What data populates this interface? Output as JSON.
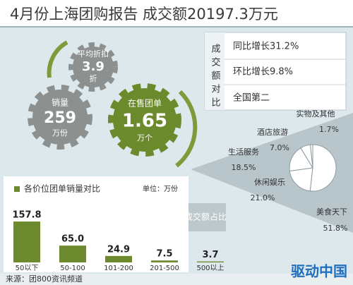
{
  "title": "4月份上海团购报告 成交额20197.3万元",
  "gears": [
    {
      "label": "平均折扣",
      "value": "3.9",
      "unit": "折"
    },
    {
      "label": "销量",
      "value": "259",
      "unit": "万份"
    },
    {
      "label": "在售团单",
      "value": "1.65",
      "unit": "万个"
    }
  ],
  "comparison": {
    "label": "成交额对比",
    "items": [
      "同比增长31.2%",
      "环比增长9.8%",
      "全国第二"
    ]
  },
  "chart_data": [
    {
      "type": "bar",
      "title": "各价位团单销量对比",
      "unit": "单位：万份",
      "categories": [
        "50以下",
        "50-100",
        "101-200",
        "201-500",
        "500以上"
      ],
      "values": [
        157.8,
        65.0,
        24.9,
        7.5,
        3.7
      ],
      "value_labels": [
        "157.8",
        "65.0",
        "24.9",
        "7.5",
        "3.7"
      ],
      "color": "#6e8a2f"
    },
    {
      "type": "pie",
      "title": "各类团购成交额占比",
      "categories": [
        "实物及其他",
        "酒店旅游",
        "生活服务",
        "休闲娱乐",
        "美食天下"
      ],
      "values": [
        1.7,
        7.0,
        18.5,
        21.0,
        51.8
      ],
      "value_labels": [
        "1.7%",
        "7.0%",
        "18.5%",
        "21.0%",
        "51.8%"
      ]
    }
  ],
  "source": "来源：团800资讯频道",
  "watermark": "驱动中国"
}
